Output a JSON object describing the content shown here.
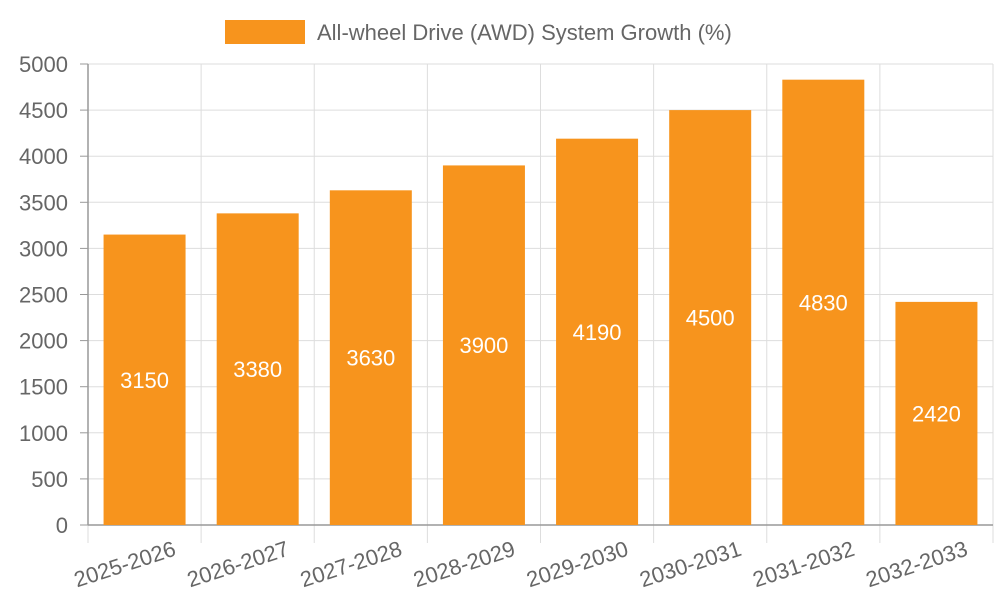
{
  "chart_data": {
    "type": "bar",
    "categories": [
      "2025-2026",
      "2026-2027",
      "2027-2028",
      "2028-2029",
      "2029-2030",
      "2030-2031",
      "2031-2032",
      "2032-2033"
    ],
    "series": [
      {
        "name": "All-wheel Drive (AWD) System Growth (%)",
        "values": [
          3150,
          3380,
          3630,
          3900,
          4190,
          4500,
          4830,
          2420
        ],
        "color": "#f7941d"
      }
    ],
    "title": "",
    "xlabel": "",
    "ylabel": "",
    "ylim": [
      0,
      5000
    ],
    "yticks": [
      0,
      500,
      1000,
      1500,
      2000,
      2500,
      3000,
      3500,
      4000,
      4500,
      5000
    ],
    "grid": true,
    "legend_position": "top-center",
    "data_labels": true,
    "colors": {
      "bar": "#f7941d",
      "grid": "#dddddd",
      "axis": "#999999",
      "tick_text": "#666666",
      "data_label": "#ffffff"
    }
  }
}
